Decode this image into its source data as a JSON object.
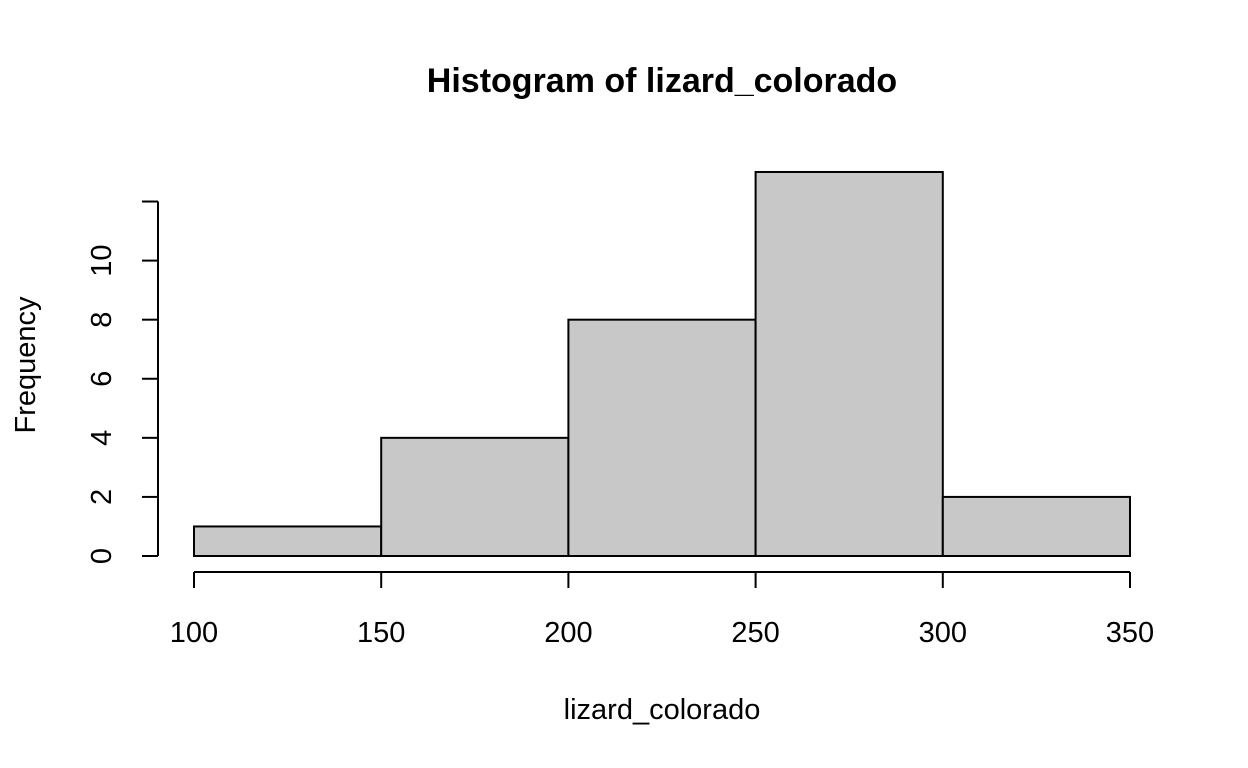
{
  "chart_data": {
    "type": "histogram",
    "title": "Histogram of lizard_colorado",
    "xlabel": "lizard_colorado",
    "ylabel": "Frequency",
    "bins": [
      {
        "start": 100,
        "end": 150,
        "count": 1
      },
      {
        "start": 150,
        "end": 200,
        "count": 4
      },
      {
        "start": 200,
        "end": 250,
        "count": 8
      },
      {
        "start": 250,
        "end": 300,
        "count": 13
      },
      {
        "start": 300,
        "end": 350,
        "count": 2
      }
    ],
    "xlim": [
      100,
      350
    ],
    "ylim": [
      0,
      13
    ],
    "x_ticks": [
      100,
      150,
      200,
      250,
      300,
      350
    ],
    "y_ticks": [
      0,
      2,
      4,
      6,
      8,
      10,
      12
    ],
    "y_tick_labels": [
      "0",
      "2",
      "4",
      "6",
      "8",
      "10",
      ""
    ],
    "grid": false,
    "bar_fill": "#c8c8c8",
    "bar_edge": "#000000"
  }
}
